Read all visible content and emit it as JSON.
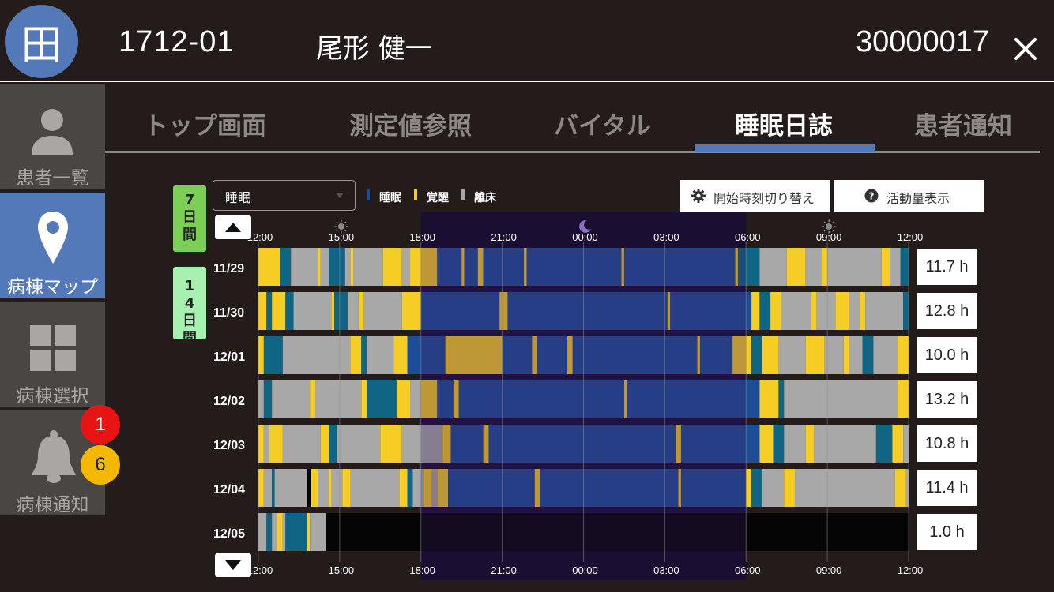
{
  "header": {
    "logo": "田",
    "room": "1712-01",
    "patient_name": "尾形 健一",
    "patient_id": "30000017",
    "close_icon": "close-icon"
  },
  "sidebar": {
    "items": [
      {
        "label": "患者一覧",
        "icon": "person-icon",
        "active": false
      },
      {
        "label": "病棟マップ",
        "icon": "map-pin-icon",
        "active": true
      },
      {
        "label": "病棟選択",
        "icon": "grid-icon",
        "active": false
      },
      {
        "label": "病棟通知",
        "icon": "bell-icon",
        "active": false
      }
    ],
    "badge_red": "1",
    "badge_yellow": "6"
  },
  "tabs": [
    "トップ画面",
    "測定値参照",
    "バイタル",
    "睡眠日誌",
    "患者通知"
  ],
  "active_tab": "睡眠日誌",
  "controls": {
    "range_7": "7日間",
    "range_14": "14日間",
    "mode_select": "睡眠",
    "legend": [
      {
        "label": "睡眠",
        "color": "#1c4e95"
      },
      {
        "label": "覚醒",
        "color": "#f6cd25"
      },
      {
        "label": "離床",
        "color": "#a8a8a8"
      }
    ],
    "btn_start_time": "開始時刻切り替え",
    "btn_activity": "活動量表示"
  },
  "chart_data": {
    "type": "timeline",
    "time_labels": [
      "12:00",
      "15:00",
      "18:00",
      "21:00",
      "00:00",
      "03:00",
      "06:00",
      "09:00",
      "12:00"
    ],
    "day_icons": [
      "sun-icon",
      "moon-icon",
      "sun-icon"
    ],
    "night_range": [
      "18:00",
      "06:00"
    ],
    "colors": {
      "sleep": "#1c4e95",
      "wake": "#f6cd25",
      "out": "#a8a8a8",
      "light": "#106584",
      "none": "#050505"
    },
    "rows": [
      {
        "date": "11/29",
        "duration": "11.7 h",
        "segments": [
          [
            "W",
            0,
            0.8
          ],
          [
            "L",
            0.8,
            1.2
          ],
          [
            "O",
            1.2,
            2.2
          ],
          [
            "W",
            2.2,
            2.3
          ],
          [
            "O",
            2.3,
            2.6
          ],
          [
            "L",
            2.6,
            3.2
          ],
          [
            "O",
            3.2,
            3.4
          ],
          [
            "W",
            3.4,
            3.5
          ],
          [
            "O",
            3.5,
            4.6
          ],
          [
            "W",
            4.6,
            5.3
          ],
          [
            "O",
            5.3,
            5.6
          ],
          [
            "W",
            5.6,
            6.6
          ],
          [
            "S",
            6.6,
            7.5
          ],
          [
            "W",
            7.5,
            7.6
          ],
          [
            "S",
            7.6,
            8.1
          ],
          [
            "W",
            8.1,
            8.3
          ],
          [
            "S",
            8.3,
            9.8
          ],
          [
            "W",
            9.8,
            9.9
          ],
          [
            "S",
            9.9,
            13.4
          ],
          [
            "W",
            13.4,
            13.5
          ],
          [
            "S",
            13.5,
            17.6
          ],
          [
            "W",
            17.6,
            17.7
          ],
          [
            "L",
            17.7,
            18.5
          ],
          [
            "O",
            18.5,
            19.5
          ],
          [
            "W",
            19.5,
            20.2
          ],
          [
            "O",
            20.2,
            20.8
          ],
          [
            "W",
            20.8,
            21.0
          ],
          [
            "O",
            21.0,
            23.0
          ],
          [
            "W",
            23.0,
            23.3
          ],
          [
            "O",
            23.3,
            23.7
          ],
          [
            "L",
            23.7,
            24
          ]
        ]
      },
      {
        "date": "11/30",
        "duration": "12.8 h",
        "segments": [
          [
            "W",
            0,
            0.3
          ],
          [
            "L",
            0.3,
            0.5
          ],
          [
            "W",
            0.5,
            1.0
          ],
          [
            "L",
            1.0,
            1.3
          ],
          [
            "O",
            1.3,
            2.7
          ],
          [
            "W",
            2.7,
            2.8
          ],
          [
            "L",
            2.8,
            3.3
          ],
          [
            "O",
            3.3,
            3.7
          ],
          [
            "W",
            3.7,
            3.9
          ],
          [
            "O",
            3.9,
            5.3
          ],
          [
            "W",
            5.3,
            6.0
          ],
          [
            "S",
            6.0,
            8.9
          ],
          [
            "W",
            8.9,
            9.2
          ],
          [
            "S",
            9.2,
            15.1
          ],
          [
            "W",
            15.1,
            15.2
          ],
          [
            "S",
            15.2,
            18.2
          ],
          [
            "W",
            18.2,
            18.5
          ],
          [
            "L",
            18.5,
            18.9
          ],
          [
            "W",
            18.9,
            19.3
          ],
          [
            "O",
            19.3,
            20.4
          ],
          [
            "W",
            20.4,
            20.6
          ],
          [
            "O",
            20.6,
            21.3
          ],
          [
            "W",
            21.3,
            21.8
          ],
          [
            "O",
            21.8,
            22.2
          ],
          [
            "W",
            22.2,
            22.4
          ],
          [
            "O",
            22.4,
            23.8
          ],
          [
            "L",
            23.8,
            24
          ]
        ]
      },
      {
        "date": "12/01",
        "duration": "10.0 h",
        "segments": [
          [
            "W",
            0,
            0.2
          ],
          [
            "L",
            0.2,
            0.9
          ],
          [
            "O",
            0.9,
            3.4
          ],
          [
            "W",
            3.4,
            3.8
          ],
          [
            "L",
            3.8,
            4.0
          ],
          [
            "O",
            4.0,
            5.0
          ],
          [
            "W",
            5.0,
            5.5
          ],
          [
            "S",
            5.5,
            6.9
          ],
          [
            "W",
            6.9,
            9.0
          ],
          [
            "S",
            9.0,
            10.1
          ],
          [
            "W",
            10.1,
            10.3
          ],
          [
            "S",
            10.3,
            11.4
          ],
          [
            "W",
            11.4,
            11.6
          ],
          [
            "S",
            11.6,
            16.2
          ],
          [
            "W",
            16.2,
            16.3
          ],
          [
            "S",
            16.3,
            17.5
          ],
          [
            "W",
            17.5,
            18.2
          ],
          [
            "L",
            18.2,
            18.6
          ],
          [
            "W",
            18.6,
            19.2
          ],
          [
            "O",
            19.2,
            20.2
          ],
          [
            "W",
            20.2,
            20.9
          ],
          [
            "O",
            20.9,
            21.6
          ],
          [
            "W",
            21.6,
            21.8
          ],
          [
            "O",
            21.8,
            22.3
          ],
          [
            "L",
            22.3,
            22.7
          ],
          [
            "O",
            22.7,
            23.6
          ],
          [
            "W",
            23.6,
            24
          ]
        ]
      },
      {
        "date": "12/02",
        "duration": "13.2 h",
        "segments": [
          [
            "O",
            0,
            0.2
          ],
          [
            "L",
            0.2,
            0.5
          ],
          [
            "O",
            0.5,
            1.9
          ],
          [
            "W",
            1.9,
            2.1
          ],
          [
            "O",
            2.1,
            3.8
          ],
          [
            "W",
            3.8,
            4.0
          ],
          [
            "L",
            4.0,
            5.1
          ],
          [
            "W",
            5.1,
            5.6
          ],
          [
            "O",
            5.6,
            6.0
          ],
          [
            "W",
            6.0,
            6.6
          ],
          [
            "S",
            6.6,
            7.2
          ],
          [
            "W",
            7.2,
            7.4
          ],
          [
            "S",
            7.4,
            13.5
          ],
          [
            "W",
            13.5,
            13.6
          ],
          [
            "S",
            13.6,
            18.5
          ],
          [
            "W",
            18.5,
            19.2
          ],
          [
            "L",
            19.2,
            19.4
          ],
          [
            "O",
            19.4,
            23.6
          ],
          [
            "W",
            23.6,
            24
          ]
        ]
      },
      {
        "date": "12/03",
        "duration": "10.8 h",
        "segments": [
          [
            "W",
            0,
            0.2
          ],
          [
            "O",
            0.2,
            0.4
          ],
          [
            "W",
            0.4,
            0.9
          ],
          [
            "O",
            0.9,
            2.3
          ],
          [
            "W",
            2.3,
            2.6
          ],
          [
            "L",
            2.6,
            2.9
          ],
          [
            "O",
            2.9,
            4.5
          ],
          [
            "W",
            4.5,
            5.3
          ],
          [
            "O",
            5.3,
            6.8
          ],
          [
            "W",
            6.8,
            7.1
          ],
          [
            "S",
            7.1,
            8.3
          ],
          [
            "W",
            8.3,
            8.5
          ],
          [
            "S",
            8.5,
            15.4
          ],
          [
            "W",
            15.4,
            15.6
          ],
          [
            "S",
            15.6,
            18.5
          ],
          [
            "W",
            18.5,
            19.0
          ],
          [
            "L",
            19.0,
            19.4
          ],
          [
            "O",
            19.4,
            20.2
          ],
          [
            "W",
            20.2,
            20.5
          ],
          [
            "O",
            20.5,
            22.8
          ],
          [
            "L",
            22.8,
            23.4
          ],
          [
            "W",
            23.4,
            23.8
          ],
          [
            "O",
            23.8,
            24
          ]
        ]
      },
      {
        "date": "12/04",
        "duration": "11.4 h",
        "segments": [
          [
            "W",
            0,
            0.2
          ],
          [
            "O",
            0.2,
            0.5
          ],
          [
            "L",
            0.5,
            0.6
          ],
          [
            "O",
            0.6,
            1.8
          ],
          [
            "N",
            1.8,
            1.95
          ],
          [
            "W",
            1.95,
            2.2
          ],
          [
            "O",
            2.2,
            2.6
          ],
          [
            "W",
            2.6,
            2.7
          ],
          [
            "O",
            2.7,
            3.1
          ],
          [
            "W",
            3.1,
            3.4
          ],
          [
            "O",
            3.4,
            5.2
          ],
          [
            "W",
            5.2,
            5.5
          ],
          [
            "L",
            5.5,
            5.7
          ],
          [
            "O",
            5.7,
            6.1
          ],
          [
            "W",
            6.1,
            6.4
          ],
          [
            "O",
            6.4,
            6.6
          ],
          [
            "W",
            6.6,
            7.0
          ],
          [
            "S",
            7.0,
            10.2
          ],
          [
            "W",
            10.2,
            10.4
          ],
          [
            "S",
            10.4,
            15.5
          ],
          [
            "W",
            15.5,
            15.6
          ],
          [
            "S",
            15.6,
            18.0
          ],
          [
            "W",
            18.0,
            18.2
          ],
          [
            "L",
            18.2,
            18.6
          ],
          [
            "O",
            18.6,
            19.4
          ],
          [
            "W",
            19.4,
            19.8
          ],
          [
            "O",
            19.8,
            23.5
          ],
          [
            "W",
            23.5,
            23.9
          ],
          [
            "O",
            23.9,
            24
          ]
        ]
      },
      {
        "date": "12/05",
        "duration": "1.0 h",
        "segments": [
          [
            "O",
            0,
            0.3
          ],
          [
            "L",
            0.3,
            0.5
          ],
          [
            "O",
            0.5,
            0.7
          ],
          [
            "W",
            0.7,
            0.9
          ],
          [
            "O",
            0.9,
            1.0
          ],
          [
            "L",
            1.0,
            1.8
          ],
          [
            "W",
            1.8,
            1.9
          ],
          [
            "O",
            1.9,
            2.5
          ],
          [
            "N",
            2.5,
            24
          ]
        ]
      }
    ]
  }
}
